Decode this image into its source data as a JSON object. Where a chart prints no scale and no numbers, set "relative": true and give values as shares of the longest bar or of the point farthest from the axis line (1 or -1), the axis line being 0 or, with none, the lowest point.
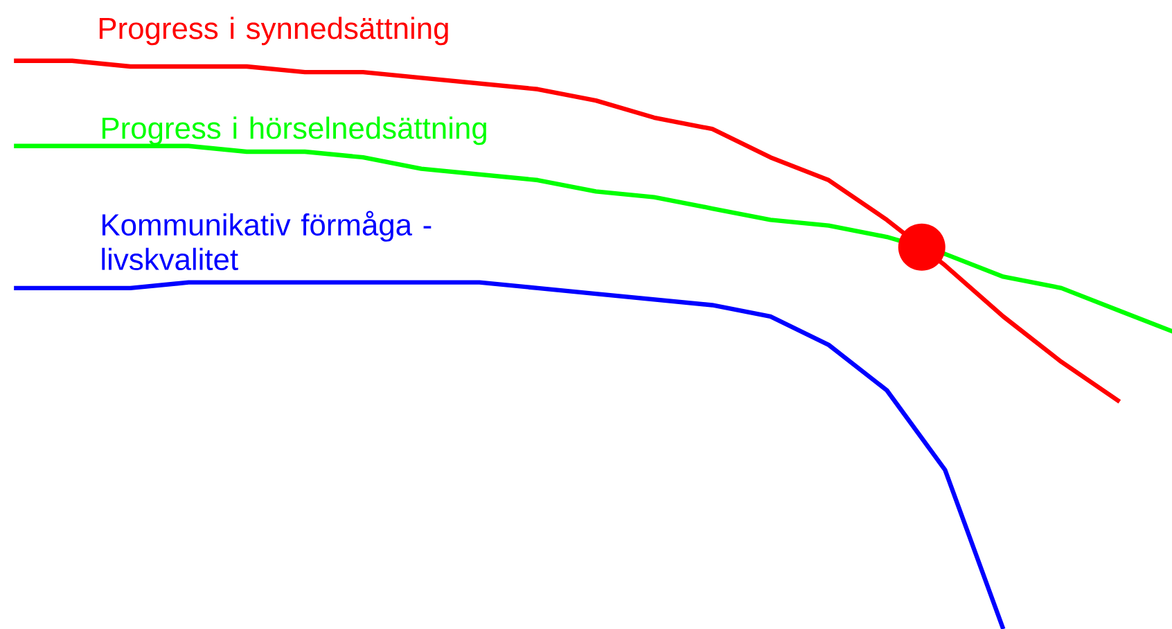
{
  "chart_data": {
    "type": "line",
    "relative": true,
    "marker": "none",
    "categories": [
      null,
      null,
      null,
      null,
      null,
      null,
      null,
      null,
      null,
      null,
      null,
      null,
      null,
      null,
      null,
      null,
      null,
      null,
      null,
      null,
      null
    ],
    "series": [
      {
        "name": "Progress i synnedsättning",
        "color": "#ff0000",
        "values": [
          1.0,
          1.0,
          0.99,
          0.99,
          0.99,
          0.98,
          0.98,
          0.97,
          0.96,
          0.95,
          0.93,
          0.9,
          0.88,
          0.83,
          0.79,
          0.72,
          0.64,
          0.55,
          0.47,
          0.4,
          null
        ]
      },
      {
        "name": "Progress i hörselnedsättning",
        "color": "#00ff00",
        "values": [
          0.85,
          0.85,
          0.85,
          0.85,
          0.84,
          0.84,
          0.83,
          0.81,
          0.8,
          0.79,
          0.77,
          0.76,
          0.74,
          0.72,
          0.71,
          0.69,
          0.66,
          0.62,
          0.6,
          0.56,
          0.52
        ]
      },
      {
        "name": "Kommunikativ förmåga - livskvalitet",
        "color": "#0000ff",
        "values": [
          0.6,
          0.6,
          0.6,
          0.61,
          0.61,
          0.61,
          0.61,
          0.61,
          0.61,
          0.6,
          0.59,
          0.58,
          0.57,
          0.55,
          0.5,
          0.42,
          0.28,
          0.0,
          null,
          null,
          null
        ]
      }
    ]
  }
}
